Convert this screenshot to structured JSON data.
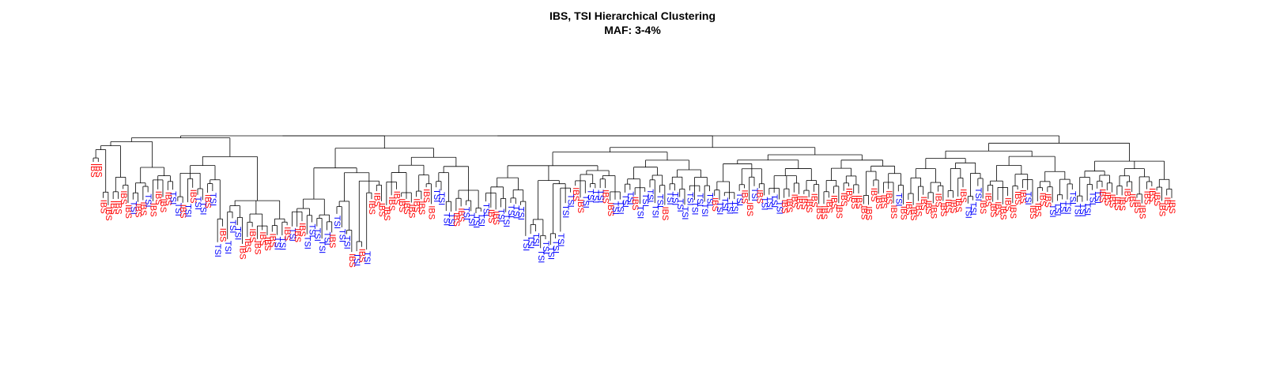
{
  "title": "IBS, TSI Hierarchical Clustering",
  "subtitle": "MAF: 3-4%",
  "colors": {
    "IBS": "#ff0000",
    "TSI": "#0000ff",
    "branch": "#000000"
  },
  "leaf_sequence": "IIIIIIIITIITIIIITTITITTITTITTTIIIIIIITTITIITTTTTITTTITITIIIIIIIIIIIIITTTTIITTTTTIITTTTTTTTTTTTTTTIITTTTIITTTTITTTTTITTTTTTTTTITTTTTIITITTTTIIIIIIIIIIIIIIIIIIIIIIITIIIIIIIIIIIIITTTIIIIIIIIITIIIITTTTTTTTTTIIIIIIIIIIIIIII",
  "leaf_codes": {
    "I": "IBS",
    "T": "TSI"
  }
}
